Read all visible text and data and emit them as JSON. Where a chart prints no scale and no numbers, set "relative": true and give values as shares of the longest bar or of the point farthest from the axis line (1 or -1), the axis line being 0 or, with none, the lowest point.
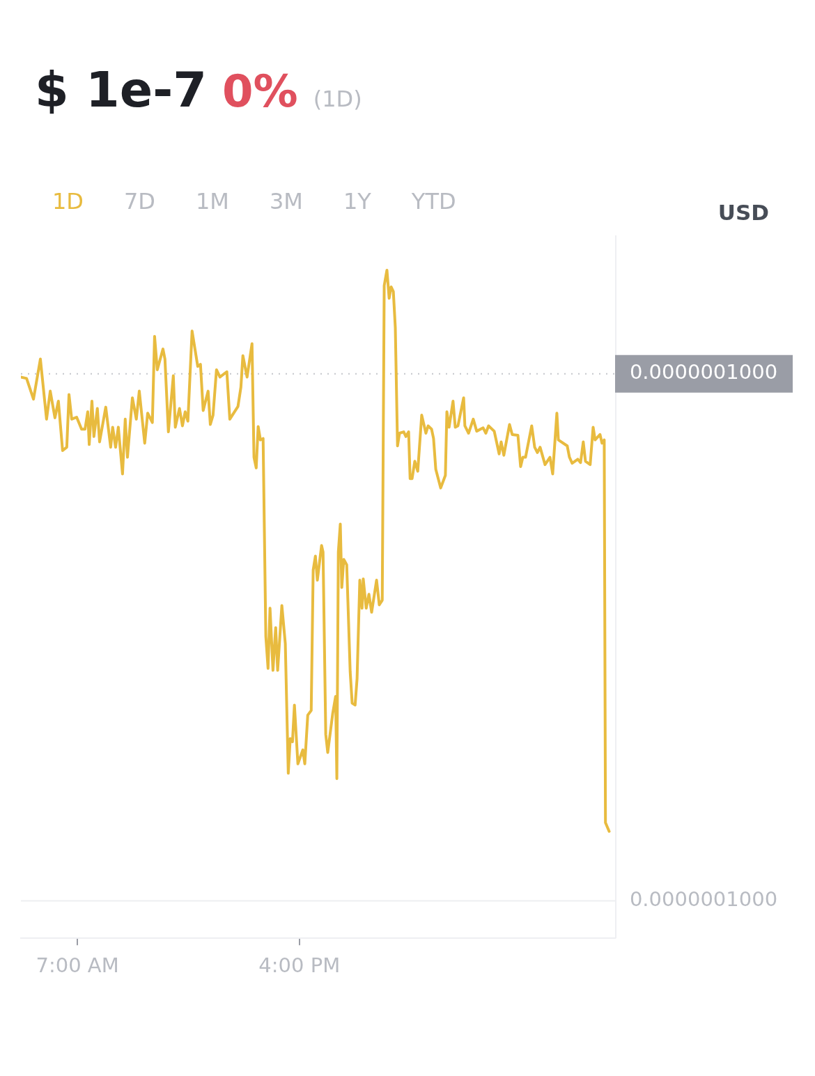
{
  "chart_data": {
    "type": "line",
    "title": "$ 1e-7",
    "subtitle": "0%",
    "relative": true,
    "annotations": [
      "(1D)",
      "1D",
      "7D",
      "1M",
      "3M",
      "1Y",
      "YTD",
      "USD",
      "0.0000001000",
      "0.0000001000"
    ],
    "xlim": [
      4.71,
      28.8
    ],
    "xticks": [
      {
        "value": 7,
        "label": "7:00 AM"
      },
      {
        "value": 16,
        "label": "4:00 PM"
      }
    ],
    "grid": false,
    "legend": false,
    "marker": "none",
    "line_style": "solid",
    "ref_lines": [
      {
        "axis": "y",
        "value": 0.845,
        "color": "#c4c6cc",
        "line_style": "dotted"
      },
      {
        "axis": "y",
        "value": 0.056,
        "color": "#eeeff2",
        "line_style": "solid"
      }
    ],
    "series": [
      {
        "color": "#e8bb3f",
        "x": [
          4.71,
          4.94,
          5.22,
          5.5,
          5.75,
          5.9,
          6.09,
          6.23,
          6.4,
          6.57,
          6.66,
          6.77,
          6.97,
          7.17,
          7.31,
          7.42,
          7.48,
          7.59,
          7.67,
          7.81,
          7.9,
          8.15,
          8.35,
          8.43,
          8.55,
          8.66,
          8.83,
          8.94,
          9.03,
          9.23,
          9.39,
          9.51,
          9.73,
          9.85,
          10.04,
          10.13,
          10.24,
          10.47,
          10.55,
          10.69,
          10.89,
          10.97,
          11.14,
          11.26,
          11.37,
          11.48,
          11.65,
          11.88,
          11.99,
          12.1,
          12.3,
          12.39,
          12.5,
          12.64,
          12.78,
          13.06,
          13.18,
          13.51,
          13.63,
          13.71,
          13.88,
          14.08,
          14.16,
          14.25,
          14.33,
          14.42,
          14.53,
          14.64,
          14.73,
          14.81,
          14.93,
          15.04,
          15.12,
          15.29,
          15.43,
          15.55,
          15.63,
          15.72,
          15.8,
          15.94,
          16.14,
          16.22,
          16.34,
          16.48,
          16.56,
          16.65,
          16.73,
          16.9,
          16.96,
          17.07,
          17.15,
          17.35,
          17.47,
          17.52,
          17.58,
          17.66,
          17.72,
          17.8,
          17.92,
          18.06,
          18.14,
          18.26,
          18.34,
          18.45,
          18.54,
          18.59,
          18.71,
          18.82,
          18.93,
          19.13,
          19.24,
          19.36,
          19.44,
          19.55,
          19.64,
          19.72,
          19.81,
          19.89,
          19.98,
          20.06,
          20.23,
          20.32,
          20.43,
          20.49,
          20.57,
          20.68,
          20.8,
          20.96,
          21.13,
          21.22,
          21.36,
          21.44,
          21.53,
          21.73,
          21.92,
          21.98,
          22.07,
          22.23,
          22.32,
          22.43,
          22.66,
          22.71,
          22.86,
          23.05,
          23.19,
          23.45,
          23.56,
          23.67,
          23.9,
          24.1,
          24.18,
          24.29,
          24.52,
          24.63,
          24.86,
          24.97,
          25.06,
          25.17,
          25.42,
          25.54,
          25.65,
          25.76,
          25.96,
          26.16,
          26.27,
          26.44,
          26.5,
          26.86,
          26.95,
          27.06,
          27.29,
          27.4,
          27.51,
          27.6,
          27.79,
          27.91,
          27.99,
          28.19,
          28.27,
          28.36,
          28.41,
          28.56
        ],
        "values": [
          0.84,
          0.838,
          0.807,
          0.867,
          0.777,
          0.819,
          0.779,
          0.804,
          0.73,
          0.735,
          0.814,
          0.777,
          0.78,
          0.762,
          0.762,
          0.788,
          0.739,
          0.804,
          0.751,
          0.793,
          0.743,
          0.795,
          0.735,
          0.765,
          0.735,
          0.765,
          0.695,
          0.777,
          0.72,
          0.809,
          0.777,
          0.819,
          0.741,
          0.786,
          0.772,
          0.901,
          0.851,
          0.882,
          0.867,
          0.758,
          0.842,
          0.765,
          0.793,
          0.767,
          0.788,
          0.774,
          0.909,
          0.856,
          0.859,
          0.79,
          0.819,
          0.769,
          0.783,
          0.851,
          0.84,
          0.848,
          0.777,
          0.796,
          0.825,
          0.872,
          0.84,
          0.89,
          0.72,
          0.704,
          0.766,
          0.746,
          0.748,
          0.452,
          0.404,
          0.494,
          0.401,
          0.465,
          0.401,
          0.498,
          0.441,
          0.247,
          0.299,
          0.294,
          0.349,
          0.261,
          0.282,
          0.261,
          0.334,
          0.341,
          0.551,
          0.572,
          0.536,
          0.588,
          0.578,
          0.305,
          0.278,
          0.336,
          0.362,
          0.239,
          0.578,
          0.62,
          0.525,
          0.567,
          0.559,
          0.399,
          0.352,
          0.349,
          0.389,
          0.536,
          0.494,
          0.538,
          0.494,
          0.515,
          0.488,
          0.536,
          0.499,
          0.506,
          0.977,
          1,
          0.958,
          0.975,
          0.968,
          0.914,
          0.737,
          0.756,
          0.758,
          0.751,
          0.758,
          0.688,
          0.688,
          0.714,
          0.699,
          0.783,
          0.756,
          0.767,
          0.762,
          0.748,
          0.702,
          0.674,
          0.693,
          0.788,
          0.765,
          0.804,
          0.765,
          0.767,
          0.809,
          0.767,
          0.756,
          0.777,
          0.759,
          0.764,
          0.756,
          0.767,
          0.759,
          0.725,
          0.743,
          0.723,
          0.769,
          0.754,
          0.753,
          0.706,
          0.72,
          0.72,
          0.767,
          0.735,
          0.727,
          0.735,
          0.709,
          0.72,
          0.695,
          0.786,
          0.746,
          0.737,
          0.72,
          0.711,
          0.717,
          0.712,
          0.743,
          0.714,
          0.709,
          0.765,
          0.746,
          0.754,
          0.741,
          0.746,
          0.173,
          0.16
        ]
      }
    ]
  }
}
